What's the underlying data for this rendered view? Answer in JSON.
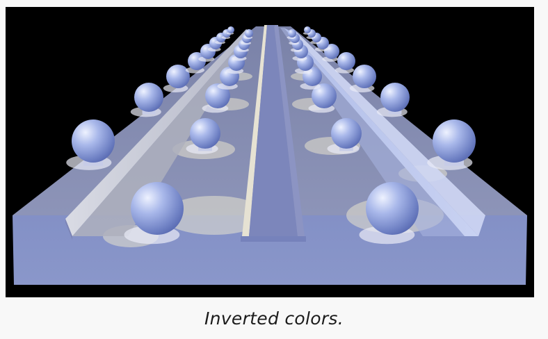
{
  "caption": "Inverted colors.",
  "render": {
    "background_color": "#000000",
    "surface_color": "#8e96c4",
    "highlight_color": "#f2efe4",
    "sphere_color": "#9fb0e6",
    "sphere_count": 36,
    "rail_count": 3
  }
}
